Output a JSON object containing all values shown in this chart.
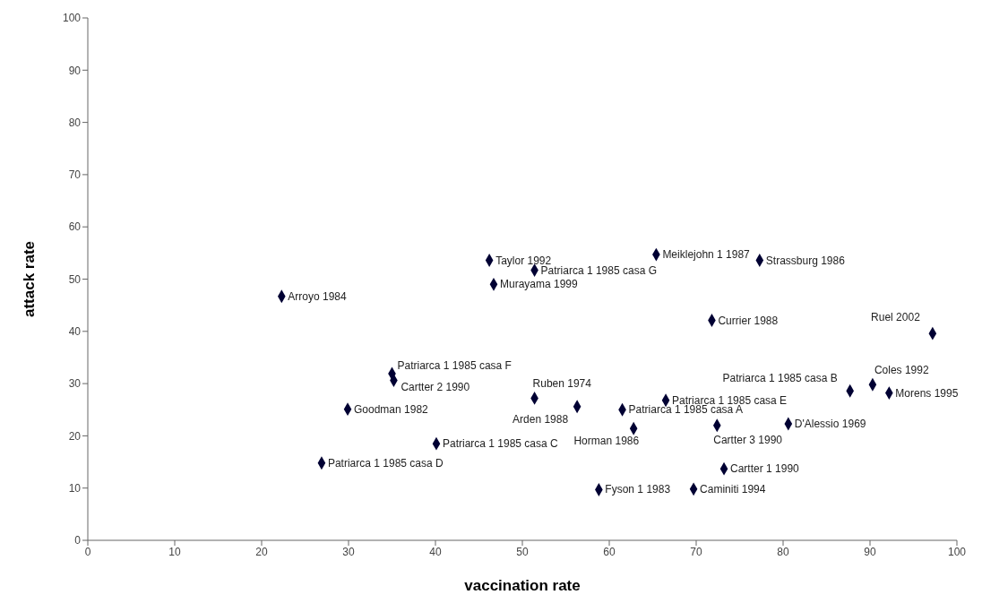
{
  "chart_data": {
    "type": "scatter",
    "xlabel": "vaccination rate",
    "ylabel": "attack rate",
    "xlim": [
      0,
      100
    ],
    "xticks": [
      0,
      10,
      20,
      30,
      40,
      50,
      60,
      70,
      80,
      90,
      100
    ],
    "ylim": [
      0,
      100
    ],
    "yticks": [
      0,
      10,
      20,
      30,
      40,
      50,
      60,
      70,
      80,
      90,
      100
    ],
    "grid": false,
    "legend": false,
    "marker": "diamond",
    "series": [
      {
        "color": "#000033",
        "x": [
          22.3,
          46.2,
          51.4,
          46.7,
          35.0,
          35.2,
          29.9,
          51.4,
          56.3,
          40.1,
          26.9,
          65.4,
          77.3,
          71.8,
          97.2,
          87.7,
          90.3,
          92.2,
          66.5,
          61.5,
          62.8,
          72.4,
          80.6,
          73.2,
          58.8,
          69.7
        ],
        "values": [
          46.7,
          53.6,
          51.7,
          49.0,
          31.9,
          30.6,
          25.1,
          27.2,
          25.6,
          18.5,
          14.8,
          54.7,
          53.6,
          42.1,
          39.6,
          28.6,
          29.8,
          28.2,
          26.8,
          25.0,
          21.4,
          22.0,
          22.3,
          13.7,
          9.7,
          9.8
        ]
      }
    ],
    "annotations": [
      {
        "text": "Arroyo 1984",
        "x": 22.3,
        "y": 46.7
      },
      {
        "text": "Taylor 1992",
        "x": 46.2,
        "y": 53.6
      },
      {
        "text": "Patriarca 1 1985 casa G",
        "x": 51.4,
        "y": 51.7
      },
      {
        "text": "Murayama 1999",
        "x": 46.7,
        "y": 49.0
      },
      {
        "text": "Patriarca 1 1985 casa F",
        "x": 35.0,
        "y": 31.9
      },
      {
        "text": "Cartter 2 1990",
        "x": 35.2,
        "y": 30.6
      },
      {
        "text": "Goodman 1982",
        "x": 29.9,
        "y": 25.1
      },
      {
        "text": "Ruben 1974",
        "x": 51.4,
        "y": 27.2
      },
      {
        "text": "Arden 1988",
        "x": 56.3,
        "y": 25.6
      },
      {
        "text": "Patriarca 1 1985 casa C",
        "x": 40.1,
        "y": 18.5
      },
      {
        "text": "Patriarca 1 1985 casa D",
        "x": 26.9,
        "y": 14.8
      },
      {
        "text": "Meiklejohn 1 1987",
        "x": 65.4,
        "y": 54.7
      },
      {
        "text": "Strassburg 1986",
        "x": 77.3,
        "y": 53.6
      },
      {
        "text": "Currier 1988",
        "x": 71.8,
        "y": 42.1
      },
      {
        "text": "Ruel 2002",
        "x": 97.2,
        "y": 39.6
      },
      {
        "text": "Patriarca 1 1985 casa B",
        "x": 87.7,
        "y": 28.6
      },
      {
        "text": "Coles 1992",
        "x": 90.3,
        "y": 29.8
      },
      {
        "text": "Morens 1995",
        "x": 92.2,
        "y": 28.2
      },
      {
        "text": "Patriarca 1 1985 casa E",
        "x": 66.5,
        "y": 26.8
      },
      {
        "text": "Patriarca 1 1985 casa A",
        "x": 61.5,
        "y": 25.0
      },
      {
        "text": "Horman 1986",
        "x": 62.8,
        "y": 21.4
      },
      {
        "text": "Cartter 3 1990",
        "x": 72.4,
        "y": 22.0
      },
      {
        "text": "D'Alessio 1969",
        "x": 80.6,
        "y": 22.3
      },
      {
        "text": "Cartter 1 1990",
        "x": 73.2,
        "y": 13.7
      },
      {
        "text": "Fyson 1 1983",
        "x": 58.8,
        "y": 9.7
      },
      {
        "text": "Caminiti 1994",
        "x": 69.7,
        "y": 9.8
      }
    ]
  }
}
